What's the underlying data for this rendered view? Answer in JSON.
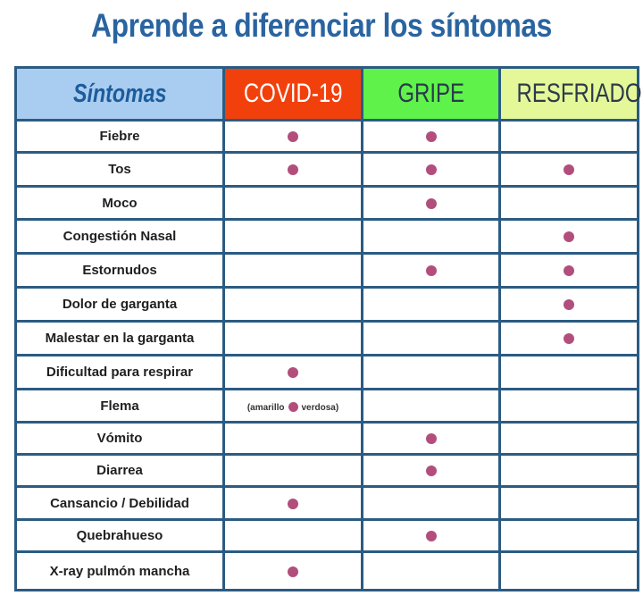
{
  "title": "Aprende a diferenciar los síntomas",
  "colors": {
    "title": "#2a64a0",
    "border": "#2b5b82",
    "dot": "#b24e7c",
    "header_sintomas": "#a9cdf0",
    "header_covid": "#f2400c",
    "header_gripe": "#5ef24a",
    "header_resfriado": "#e4f89a"
  },
  "headers": [
    "Síntomas",
    "COVID-19",
    "GRIPE",
    "RESFRIADO"
  ],
  "rows": [
    {
      "symptom": "Fiebre",
      "covid": true,
      "gripe": true,
      "resfriado": false
    },
    {
      "symptom": "Tos",
      "covid": true,
      "gripe": true,
      "resfriado": true
    },
    {
      "symptom": "Moco",
      "covid": false,
      "gripe": true,
      "resfriado": false
    },
    {
      "symptom": "Congestión Nasal",
      "covid": false,
      "gripe": false,
      "resfriado": true
    },
    {
      "symptom": "Estornudos",
      "covid": false,
      "gripe": true,
      "resfriado": true
    },
    {
      "symptom": "Dolor de garganta",
      "covid": false,
      "gripe": false,
      "resfriado": true
    },
    {
      "symptom": "Malestar en la garganta",
      "covid": false,
      "gripe": false,
      "resfriado": true
    },
    {
      "symptom": "Dificultad para respirar",
      "covid": true,
      "gripe": false,
      "resfriado": false
    },
    {
      "symptom": "Flema",
      "covid": true,
      "covid_note_before": "(amarillo",
      "covid_note_after": "verdosa)",
      "gripe": false,
      "resfriado": false
    },
    {
      "symptom": "Vómito",
      "covid": false,
      "gripe": true,
      "resfriado": false
    },
    {
      "symptom": "Diarrea",
      "covid": false,
      "gripe": true,
      "resfriado": false
    },
    {
      "symptom": "Cansancio / Debilidad",
      "covid": true,
      "gripe": false,
      "resfriado": false
    },
    {
      "symptom": "Quebrahueso",
      "covid": false,
      "gripe": true,
      "resfriado": false
    },
    {
      "symptom": "X-ray pulmón mancha",
      "covid": true,
      "gripe": false,
      "resfriado": false
    }
  ]
}
